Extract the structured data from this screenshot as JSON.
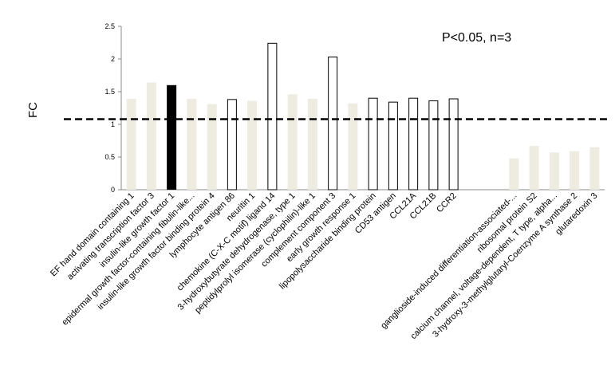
{
  "chart_data": {
    "type": "bar",
    "title": "",
    "xlabel": "",
    "ylabel": "FC",
    "ylim": [
      0,
      2.5
    ],
    "yticks": [
      "0",
      "0.5",
      "1",
      "1.5",
      "2",
      "2.5"
    ],
    "annotation": "P<0.05, n=3",
    "threshold": 1.08,
    "grid": false,
    "colors": {
      "filled": "#eeebe1",
      "highlight": "#000000",
      "outline": "#000000",
      "outline_fill": "#ffffff"
    },
    "categories": [
      "EF hand domain containing 1",
      "activating transcription factor 3",
      "insulin-like growth factor 1",
      "epidermal growth factor-containing fibulin-like...",
      "insulin-like growth factor binding protein 4",
      "lymphocyte antigen 86",
      "neuritin 1",
      "chemokine (C-X-C motif) ligand 14",
      "3-hydroxybutyrate dehydrogenase, type 1",
      "peptidylprolyl isomerase (cyclophilin)-like 1",
      "complement component 3",
      "early growth response 1",
      "lipopolysaccharide binding protein",
      "CD53 antigen",
      "CCL21A",
      "CCL21B",
      "CCR2",
      "",
      "",
      "ganglioside-induced differentiation-associated-...",
      "ribosomal protein S2",
      "calcium channel, voltage-dependent, T type, alpha...",
      "3-hydroxy-3-methylglutaryl-Coenzyme A synthase 2",
      "glutaredoxin 3"
    ],
    "values": [
      1.39,
      1.64,
      1.6,
      1.39,
      1.31,
      1.38,
      1.36,
      2.24,
      1.46,
      1.39,
      2.03,
      1.32,
      1.4,
      1.34,
      1.4,
      1.36,
      1.39,
      null,
      null,
      0.48,
      0.67,
      0.57,
      0.59,
      0.65
    ],
    "styles": [
      "filled",
      "filled",
      "highlight",
      "filled",
      "filled",
      "outline",
      "filled",
      "outline",
      "filled",
      "filled",
      "outline",
      "filled",
      "outline",
      "outline",
      "outline",
      "outline",
      "outline",
      "none",
      "none",
      "filled",
      "filled",
      "filled",
      "filled",
      "filled"
    ]
  }
}
